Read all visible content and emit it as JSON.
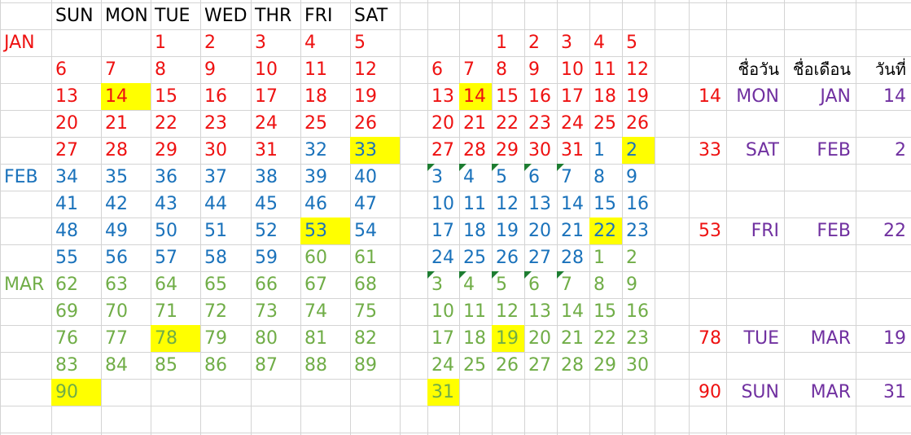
{
  "colors": {
    "jan": "#ee1111",
    "feb": "#1a72bb",
    "mar": "#70ad47",
    "purple": "#7030a0",
    "black": "#000000",
    "highlight": "#ffff00",
    "grid": "#d4d4d4",
    "marker": "#1e7d32"
  },
  "headers": {
    "days": [
      "SUN",
      "MON",
      "TUE",
      "WED",
      "THR",
      "FRI",
      "SAT"
    ],
    "thai": [
      "ชื่อวัน",
      "ชื่อเดือน",
      "วันที่"
    ]
  },
  "months": [
    "JAN",
    "FEB",
    "MAR"
  ],
  "left_grid": [
    [
      "",
      "",
      "1",
      "2",
      "3",
      "4",
      "5"
    ],
    [
      "6",
      "7",
      "8",
      "9",
      "10",
      "11",
      "12"
    ],
    [
      "13",
      "14",
      "15",
      "16",
      "17",
      "18",
      "19"
    ],
    [
      "20",
      "21",
      "22",
      "23",
      "24",
      "25",
      "26"
    ],
    [
      "27",
      "28",
      "29",
      "30",
      "31",
      "32",
      "33"
    ],
    [
      "34",
      "35",
      "36",
      "37",
      "38",
      "39",
      "40"
    ],
    [
      "41",
      "42",
      "43",
      "44",
      "45",
      "46",
      "47"
    ],
    [
      "48",
      "49",
      "50",
      "51",
      "52",
      "53",
      "54"
    ],
    [
      "55",
      "56",
      "57",
      "58",
      "59",
      "60",
      "61"
    ],
    [
      "62",
      "63",
      "64",
      "65",
      "66",
      "67",
      "68"
    ],
    [
      "69",
      "70",
      "71",
      "72",
      "73",
      "74",
      "75"
    ],
    [
      "76",
      "77",
      "78",
      "79",
      "80",
      "81",
      "82"
    ],
    [
      "83",
      "84",
      "85",
      "86",
      "87",
      "88",
      "89"
    ],
    [
      "90",
      "",
      "",
      "",
      "",
      "",
      ""
    ]
  ],
  "right_grid": [
    [
      "",
      "",
      "1",
      "2",
      "3",
      "4",
      "5"
    ],
    [
      "6",
      "7",
      "8",
      "9",
      "10",
      "11",
      "12"
    ],
    [
      "13",
      "14",
      "15",
      "16",
      "17",
      "18",
      "19"
    ],
    [
      "20",
      "21",
      "22",
      "23",
      "24",
      "25",
      "26"
    ],
    [
      "27",
      "28",
      "29",
      "30",
      "31",
      "1",
      "2"
    ],
    [
      "3",
      "4",
      "5",
      "6",
      "7",
      "8",
      "9"
    ],
    [
      "10",
      "11",
      "12",
      "13",
      "14",
      "15",
      "16"
    ],
    [
      "17",
      "18",
      "19",
      "20",
      "21",
      "22",
      "23"
    ],
    [
      "24",
      "25",
      "26",
      "27",
      "28",
      "1",
      "2"
    ],
    [
      "3",
      "4",
      "5",
      "6",
      "7",
      "8",
      "9"
    ],
    [
      "10",
      "11",
      "12",
      "13",
      "14",
      "15",
      "16"
    ],
    [
      "17",
      "18",
      "19",
      "20",
      "21",
      "22",
      "23"
    ],
    [
      "24",
      "25",
      "26",
      "27",
      "28",
      "29",
      "30"
    ],
    [
      "31",
      "",
      "",
      "",
      "",
      "",
      ""
    ]
  ],
  "results": [
    {
      "row": 3,
      "serial": "14",
      "day": "MON",
      "month": "JAN",
      "date": "14"
    },
    {
      "row": 5,
      "serial": "33",
      "day": "SAT",
      "month": "FEB",
      "date": "2"
    },
    {
      "row": 8,
      "serial": "53",
      "day": "FRI",
      "month": "FEB",
      "date": "22"
    },
    {
      "row": 12,
      "serial": "78",
      "day": "TUE",
      "month": "MAR",
      "date": "19"
    },
    {
      "row": 14,
      "serial": "90",
      "day": "SUN",
      "month": "MAR",
      "date": "31"
    }
  ],
  "highlight_left": [
    [
      2,
      1
    ],
    [
      4,
      6
    ],
    [
      7,
      5
    ],
    [
      11,
      2
    ],
    [
      13,
      0
    ]
  ],
  "highlight_right": [
    [
      2,
      1
    ],
    [
      4,
      6
    ],
    [
      7,
      5
    ],
    [
      11,
      2
    ],
    [
      13,
      0
    ]
  ],
  "marked_right": [
    [
      5,
      0
    ],
    [
      5,
      1
    ],
    [
      5,
      2
    ],
    [
      5,
      3
    ],
    [
      5,
      4
    ],
    [
      9,
      0
    ],
    [
      9,
      1
    ],
    [
      9,
      2
    ],
    [
      9,
      3
    ],
    [
      9,
      4
    ]
  ]
}
